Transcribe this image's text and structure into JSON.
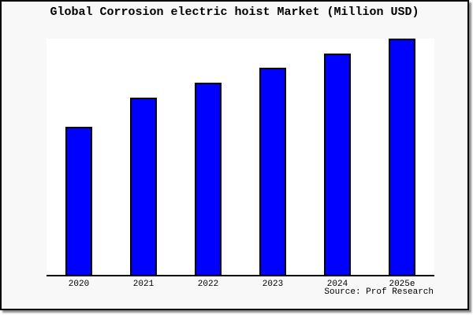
{
  "chart_data": {
    "type": "bar",
    "title": "Global Corrosion electric hoist Market (Million USD)",
    "categories": [
      "2020",
      "2021",
      "2022",
      "2023",
      "2024",
      "2025e"
    ],
    "values": [
      62.8,
      75.1,
      81.4,
      87.7,
      93.7,
      100
    ],
    "value_scale_note": "relative index, tallest bar (2025e) = 100; chart shows no y-axis tick labels",
    "xlabel": "",
    "ylabel": "",
    "ylim": [
      0,
      100
    ],
    "y_axis_visible": false,
    "gridlines": false,
    "legend": false,
    "bar_color": "#0000ff",
    "bar_border_color": "#000000",
    "source_note": "Source: Prof Research"
  },
  "colors": {
    "figure_background": "#f8f8f8",
    "plot_background": "#ffffff",
    "frame_border": "#000000",
    "text": "#000000"
  }
}
